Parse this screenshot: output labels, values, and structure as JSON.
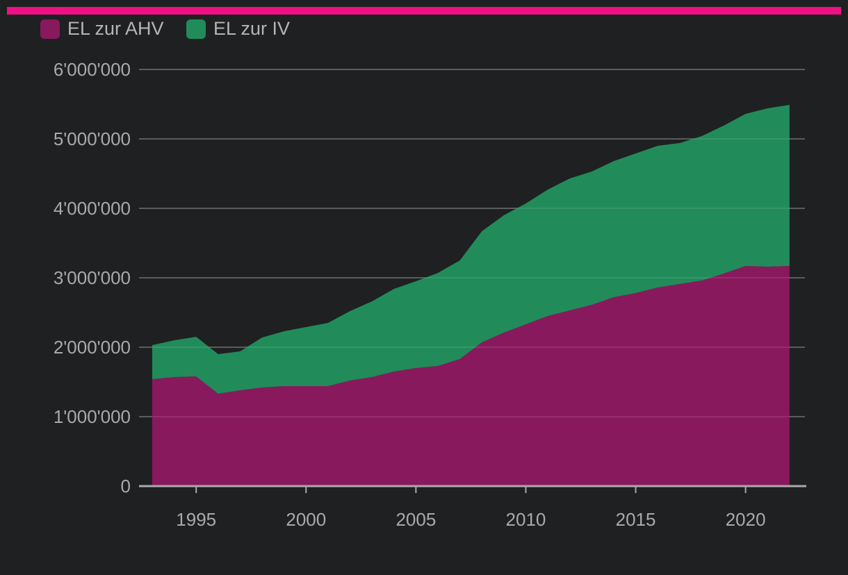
{
  "colors": {
    "background": "#1f2022",
    "accent_bar": "#ee1184",
    "ahv": "#89195d",
    "iv": "#218c5a",
    "grid": "#5a5b5d",
    "axis": "#a9aaab"
  },
  "chart_data": {
    "type": "area",
    "stacked": true,
    "title": "",
    "xlabel": "",
    "ylabel": "",
    "xlim": [
      1992.4,
      2022.7
    ],
    "ylim": [
      0,
      6000000
    ],
    "grid": true,
    "legend_position": "top-left",
    "x": [
      1993,
      1994,
      1995,
      1996,
      1997,
      1998,
      1999,
      2000,
      2001,
      2002,
      2003,
      2004,
      2005,
      2006,
      2007,
      2008,
      2009,
      2010,
      2011,
      2012,
      2013,
      2014,
      2015,
      2016,
      2017,
      2018,
      2019,
      2020,
      2021,
      2022
    ],
    "x_ticks": [
      1995,
      2000,
      2005,
      2010,
      2015,
      2020
    ],
    "x_tick_labels": [
      "1995",
      "2000",
      "2005",
      "2010",
      "2015",
      "2020"
    ],
    "y_ticks": [
      0,
      1000000,
      2000000,
      3000000,
      4000000,
      5000000,
      6000000
    ],
    "y_tick_labels": [
      "0",
      "1'000'000",
      "2'000'000",
      "3'000'000",
      "4'000'000",
      "5'000'000",
      "6'000'000"
    ],
    "series": [
      {
        "name": "EL zur AHV",
        "color": "#89195d",
        "values": [
          1540000,
          1570000,
          1580000,
          1330000,
          1380000,
          1420000,
          1440000,
          1440000,
          1440000,
          1520000,
          1570000,
          1650000,
          1700000,
          1730000,
          1830000,
          2070000,
          2210000,
          2330000,
          2450000,
          2530000,
          2610000,
          2720000,
          2780000,
          2860000,
          2910000,
          2960000,
          3060000,
          3170000,
          3160000,
          3170000
        ]
      },
      {
        "name": "EL zur IV",
        "color": "#218c5a",
        "values": [
          490000,
          530000,
          570000,
          570000,
          560000,
          720000,
          790000,
          850000,
          910000,
          1000000,
          1090000,
          1190000,
          1250000,
          1340000,
          1420000,
          1600000,
          1690000,
          1740000,
          1820000,
          1900000,
          1920000,
          1960000,
          2010000,
          2040000,
          2030000,
          2080000,
          2130000,
          2190000,
          2280000,
          2320000
        ]
      }
    ]
  }
}
